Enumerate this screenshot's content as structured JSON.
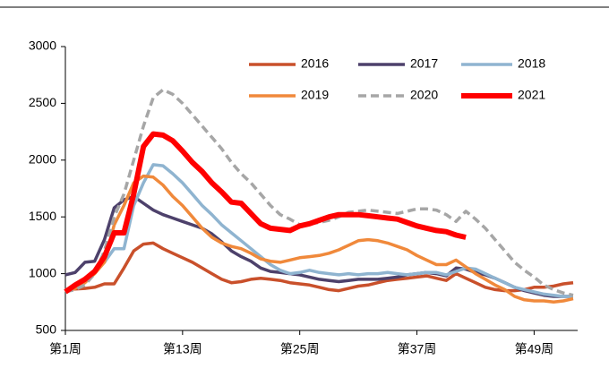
{
  "chart_data": {
    "type": "line",
    "categories": [
      "第1周",
      null,
      null,
      null,
      null,
      null,
      null,
      null,
      null,
      null,
      null,
      null,
      "第13周",
      null,
      null,
      null,
      null,
      null,
      null,
      null,
      null,
      null,
      null,
      null,
      "第25周",
      null,
      null,
      null,
      null,
      null,
      null,
      null,
      null,
      null,
      null,
      null,
      "第37周",
      null,
      null,
      null,
      null,
      null,
      null,
      null,
      null,
      null,
      null,
      null,
      "第49周",
      null,
      null,
      null,
      null
    ],
    "ylim": [
      500,
      3000
    ],
    "yticks": [
      500,
      1000,
      1500,
      2000,
      2500,
      3000
    ],
    "series": [
      {
        "name": "2016",
        "color": "#c9502b",
        "line_width": 3.5,
        "values": [
          860,
          865,
          870,
          880,
          910,
          910,
          1050,
          1200,
          1260,
          1270,
          1220,
          1180,
          1140,
          1100,
          1050,
          1000,
          950,
          920,
          930,
          950,
          960,
          950,
          940,
          920,
          910,
          900,
          880,
          860,
          850,
          870,
          890,
          900,
          920,
          940,
          950,
          960,
          970,
          980,
          960,
          940,
          1000,
          960,
          920,
          880,
          860,
          850,
          850,
          860,
          880,
          880,
          890,
          910,
          920
        ]
      },
      {
        "name": "2017",
        "color": "#4d416b",
        "line_width": 3.5,
        "values": [
          990,
          1010,
          1100,
          1110,
          1300,
          1580,
          1650,
          1680,
          1620,
          1560,
          1520,
          1490,
          1460,
          1430,
          1400,
          1350,
          1280,
          1200,
          1150,
          1110,
          1050,
          1020,
          1010,
          1000,
          990,
          970,
          950,
          940,
          930,
          940,
          950,
          950,
          950,
          960,
          970,
          990,
          1000,
          1010,
          1000,
          980,
          1050,
          1040,
          1010,
          990,
          960,
          920,
          880,
          850,
          830,
          810,
          800,
          800,
          800
        ]
      },
      {
        "name": "2018",
        "color": "#8fb4d0",
        "line_width": 3.5,
        "values": [
          840,
          880,
          960,
          1030,
          1100,
          1220,
          1220,
          1600,
          1800,
          1960,
          1950,
          1880,
          1800,
          1700,
          1600,
          1520,
          1430,
          1360,
          1290,
          1220,
          1150,
          1080,
          1030,
          1000,
          1010,
          1030,
          1010,
          1000,
          990,
          1000,
          990,
          1000,
          1000,
          1010,
          1000,
          990,
          1000,
          1010,
          1010,
          990,
          1020,
          1050,
          1040,
          1000,
          960,
          920,
          880,
          860,
          840,
          820,
          810,
          800,
          800
        ]
      },
      {
        "name": "2019",
        "color": "#f0893b",
        "line_width": 3.5,
        "values": [
          840,
          870,
          920,
          1000,
          1100,
          1430,
          1600,
          1800,
          1860,
          1850,
          1780,
          1680,
          1600,
          1500,
          1400,
          1320,
          1270,
          1240,
          1220,
          1180,
          1130,
          1110,
          1100,
          1120,
          1140,
          1150,
          1160,
          1180,
          1210,
          1250,
          1290,
          1300,
          1290,
          1270,
          1240,
          1210,
          1160,
          1120,
          1080,
          1080,
          1120,
          1060,
          1000,
          950,
          900,
          860,
          800,
          770,
          760,
          760,
          750,
          760,
          780
        ]
      },
      {
        "name": "2020",
        "color": "#a6a6a6",
        "line_width": 3.5,
        "dash": true,
        "values": [
          840,
          860,
          900,
          1000,
          1200,
          1500,
          1700,
          2000,
          2300,
          2550,
          2620,
          2580,
          2500,
          2400,
          2300,
          2200,
          2100,
          1980,
          1880,
          1800,
          1700,
          1600,
          1520,
          1480,
          1430,
          1440,
          1450,
          1470,
          1500,
          1540,
          1550,
          1560,
          1550,
          1540,
          1530,
          1550,
          1570,
          1570,
          1560,
          1520,
          1460,
          1550,
          1480,
          1400,
          1300,
          1200,
          1100,
          1030,
          970,
          900,
          860,
          830,
          810
        ]
      },
      {
        "name": "2021",
        "color": "#ff0000",
        "line_width": 6,
        "values": [
          840,
          900,
          950,
          1020,
          1150,
          1360,
          1360,
          1700,
          2120,
          2230,
          2220,
          2170,
          2080,
          1980,
          1900,
          1800,
          1720,
          1630,
          1620,
          1530,
          1440,
          1400,
          1390,
          1380,
          1420,
          1440,
          1470,
          1500,
          1520,
          1520,
          1520,
          1510,
          1500,
          1490,
          1480,
          1450,
          1420,
          1400,
          1380,
          1370,
          1340,
          1320,
          null,
          null,
          null,
          null,
          null,
          null,
          null,
          null,
          null,
          null,
          null
        ]
      }
    ]
  }
}
